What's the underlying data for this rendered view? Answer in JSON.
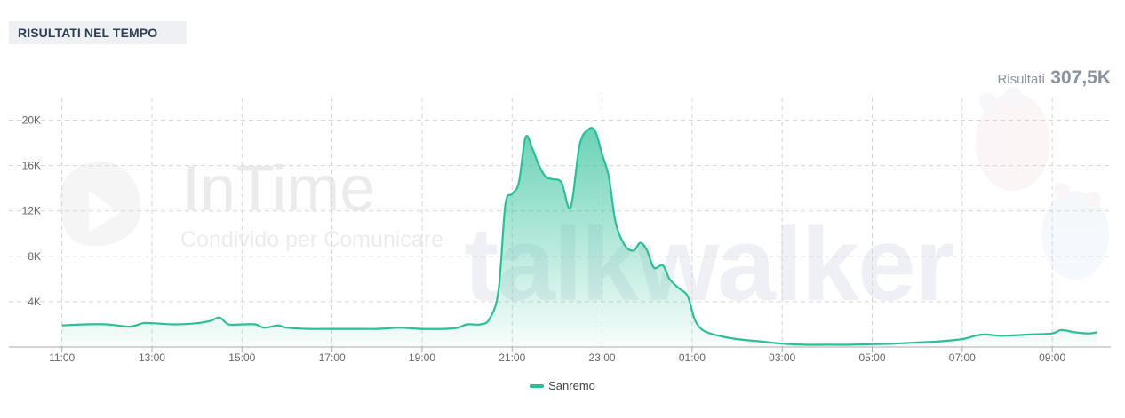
{
  "header": {
    "title": "RISULTATI NEL TEMPO"
  },
  "summary": {
    "label": "Risultati",
    "value": "307,5K"
  },
  "watermark": {
    "title": "InTime",
    "subtitle": "Condivido per Comunicare",
    "brand": "talkwalker"
  },
  "colors": {
    "series": "#2bbf98",
    "grid": "#d6d6d6",
    "axis": "#999999"
  },
  "chart_data": {
    "type": "area",
    "title": "",
    "xlabel": "",
    "ylabel": "",
    "ylim": [
      0,
      22000
    ],
    "yticks": [
      4000,
      8000,
      12000,
      16000,
      20000
    ],
    "ytick_labels": [
      "4K",
      "8K",
      "12K",
      "16K",
      "20K"
    ],
    "xticks": [
      11,
      13,
      15,
      17,
      19,
      21,
      23,
      25,
      27,
      29,
      31,
      33
    ],
    "xtick_labels": [
      "11:00",
      "13:00",
      "15:00",
      "17:00",
      "19:00",
      "21:00",
      "23:00",
      "01:00",
      "03:00",
      "05:00",
      "07:00",
      "09:00"
    ],
    "xlim": [
      10.75,
      34.3
    ],
    "grid": true,
    "legend": "bottom-center",
    "series": [
      {
        "name": "Sanremo",
        "color": "#2bbf98",
        "x": [
          11,
          11.5,
          12,
          12.5,
          12.8,
          13,
          13.5,
          14,
          14.3,
          14.5,
          14.7,
          15,
          15.3,
          15.5,
          15.8,
          16,
          16.5,
          17,
          17.5,
          18,
          18.5,
          19,
          19.5,
          19.8,
          20.0,
          20.3,
          20.5,
          20.7,
          20.85,
          21,
          21.15,
          21.3,
          21.45,
          21.6,
          21.75,
          21.9,
          22.1,
          22.3,
          22.5,
          22.7,
          22.85,
          23,
          23.15,
          23.3,
          23.5,
          23.7,
          23.85,
          24,
          24.15,
          24.35,
          24.5,
          24.7,
          24.9,
          25.05,
          25.2,
          25.4,
          25.7,
          26,
          26.5,
          27,
          27.5,
          28,
          28.5,
          29,
          29.5,
          30,
          30.5,
          31,
          31.3,
          31.5,
          31.8,
          32,
          32.5,
          33,
          33.2,
          33.5,
          33.8,
          34
        ],
        "values": [
          1900,
          2000,
          2000,
          1800,
          2100,
          2100,
          2000,
          2100,
          2300,
          2600,
          2000,
          2000,
          2000,
          1700,
          1900,
          1700,
          1600,
          1600,
          1600,
          1600,
          1700,
          1600,
          1600,
          1700,
          2000,
          2000,
          2500,
          5000,
          12500,
          13500,
          14500,
          18500,
          17500,
          16000,
          15000,
          14800,
          14500,
          12300,
          17800,
          19200,
          19000,
          17000,
          15000,
          11000,
          9000,
          8500,
          9200,
          8500,
          7000,
          7200,
          6000,
          5200,
          4500,
          2500,
          1600,
          1200,
          900,
          700,
          500,
          300,
          200,
          200,
          200,
          250,
          300,
          400,
          500,
          700,
          1000,
          1100,
          1000,
          1000,
          1100,
          1200,
          1500,
          1300,
          1200,
          1300
        ]
      }
    ]
  }
}
